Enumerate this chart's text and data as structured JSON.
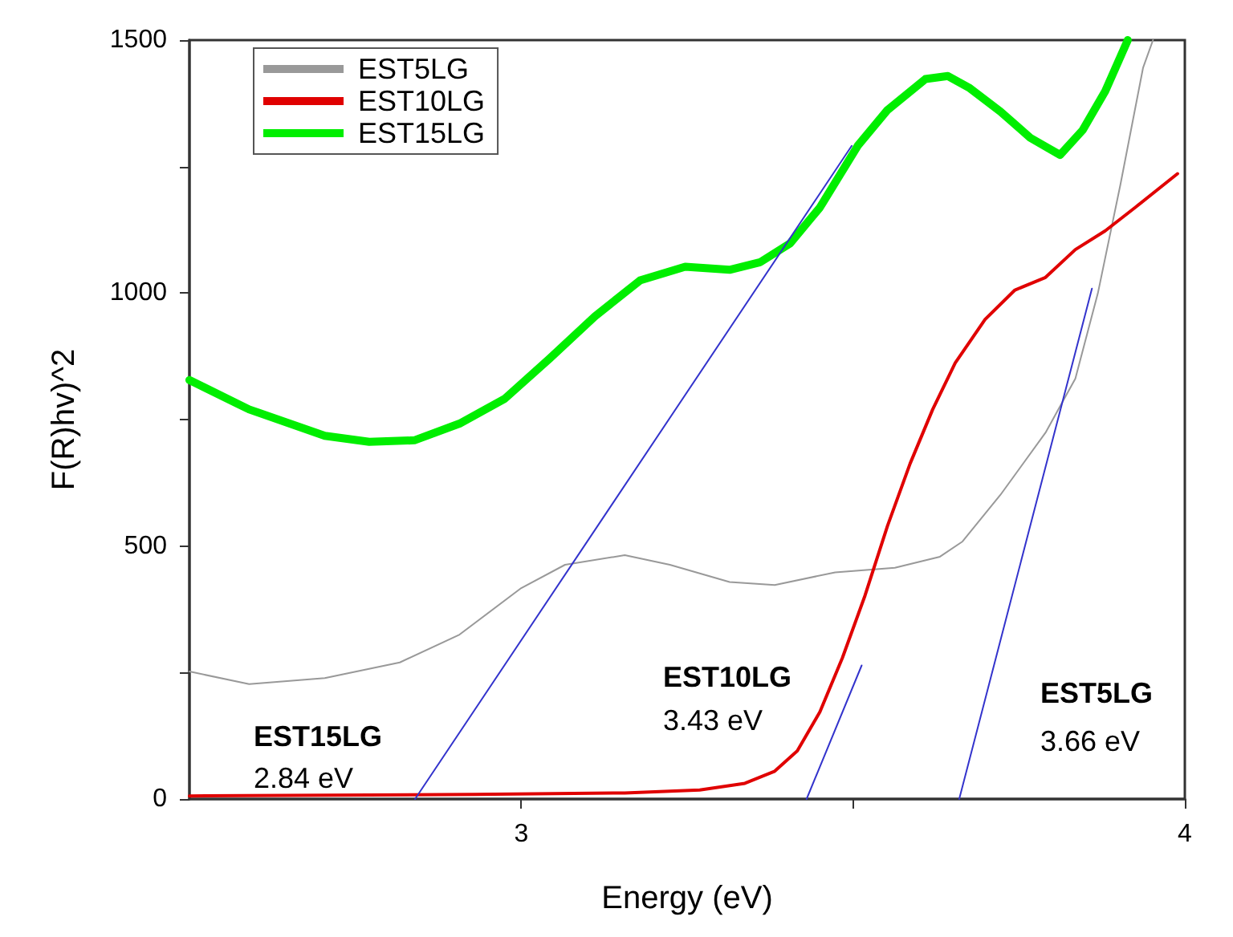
{
  "chart_data": {
    "type": "line",
    "xlabel": "Energy (eV)",
    "ylabel": "F(R)hv)^2",
    "xlim": [
      2.5,
      4.0
    ],
    "ylim": [
      0,
      1500
    ],
    "xticks": [
      3,
      {
        "value": 3.5,
        "label": null
      },
      4
    ],
    "yticks": [
      0,
      {
        "value": 250,
        "label": null
      },
      500,
      {
        "value": 750,
        "label": null
      },
      1000,
      {
        "value": 1250,
        "label": null
      },
      1500
    ],
    "grid": false,
    "legend": "top left",
    "marker": "none",
    "line_style": "solid",
    "series": [
      {
        "name": "EST5LG",
        "color": "#999999",
        "x": [
          2.5,
          2.59,
          2.704,
          2.817,
          2.907,
          3.0,
          3.066,
          3.156,
          3.224,
          3.314,
          3.382,
          3.473,
          3.563,
          3.631,
          3.665,
          3.722,
          3.79,
          3.835,
          3.869,
          3.903,
          3.937,
          3.952
        ],
        "values": [
          252,
          227,
          239,
          270,
          325,
          417,
          463,
          482,
          463,
          429,
          423,
          448,
          457,
          479,
          509,
          601,
          724,
          831,
          1000,
          1215,
          1445,
          1500
        ]
      },
      {
        "name": "EST10LG",
        "color": "#e00000",
        "x": [
          2.5,
          2.93,
          3.156,
          3.269,
          3.337,
          3.382,
          3.416,
          3.45,
          3.484,
          3.518,
          3.552,
          3.586,
          3.62,
          3.654,
          3.699,
          3.744,
          3.79,
          3.835,
          3.88,
          3.925,
          3.989
        ],
        "values": [
          6,
          9,
          12,
          18,
          31,
          55,
          95,
          172,
          279,
          402,
          540,
          663,
          770,
          862,
          948,
          1006,
          1031,
          1086,
          1123,
          1169,
          1236
        ]
      },
      {
        "name": "EST15LG",
        "color": "#00ee00",
        "x": [
          2.5,
          2.59,
          2.704,
          2.771,
          2.839,
          2.907,
          2.975,
          3.043,
          3.111,
          3.179,
          3.247,
          3.314,
          3.36,
          3.405,
          3.45,
          3.507,
          3.552,
          3.609,
          3.643,
          3.676,
          3.722,
          3.767,
          3.812,
          3.846,
          3.88,
          3.914
        ],
        "values": [
          828,
          770,
          718,
          706,
          709,
          742,
          791,
          871,
          954,
          1025,
          1052,
          1046,
          1061,
          1098,
          1169,
          1291,
          1362,
          1423,
          1429,
          1405,
          1359,
          1307,
          1273,
          1322,
          1399,
          1500
        ]
      },
      {
        "color": "#3333cc",
        "x": [
          2.84,
          3.498
        ],
        "values": [
          0,
          1291
        ]
      },
      {
        "color": "#3333cc",
        "x": [
          3.43,
          3.513
        ],
        "values": [
          0,
          264
        ]
      },
      {
        "color": "#3333cc",
        "x": [
          3.66,
          3.86
        ],
        "values": [
          0,
          1009
        ]
      }
    ],
    "annotations": [
      "EST15LG",
      "2.84 eV",
      "EST10LG",
      "3.43 eV",
      "EST5LG",
      "3.66 eV"
    ]
  }
}
